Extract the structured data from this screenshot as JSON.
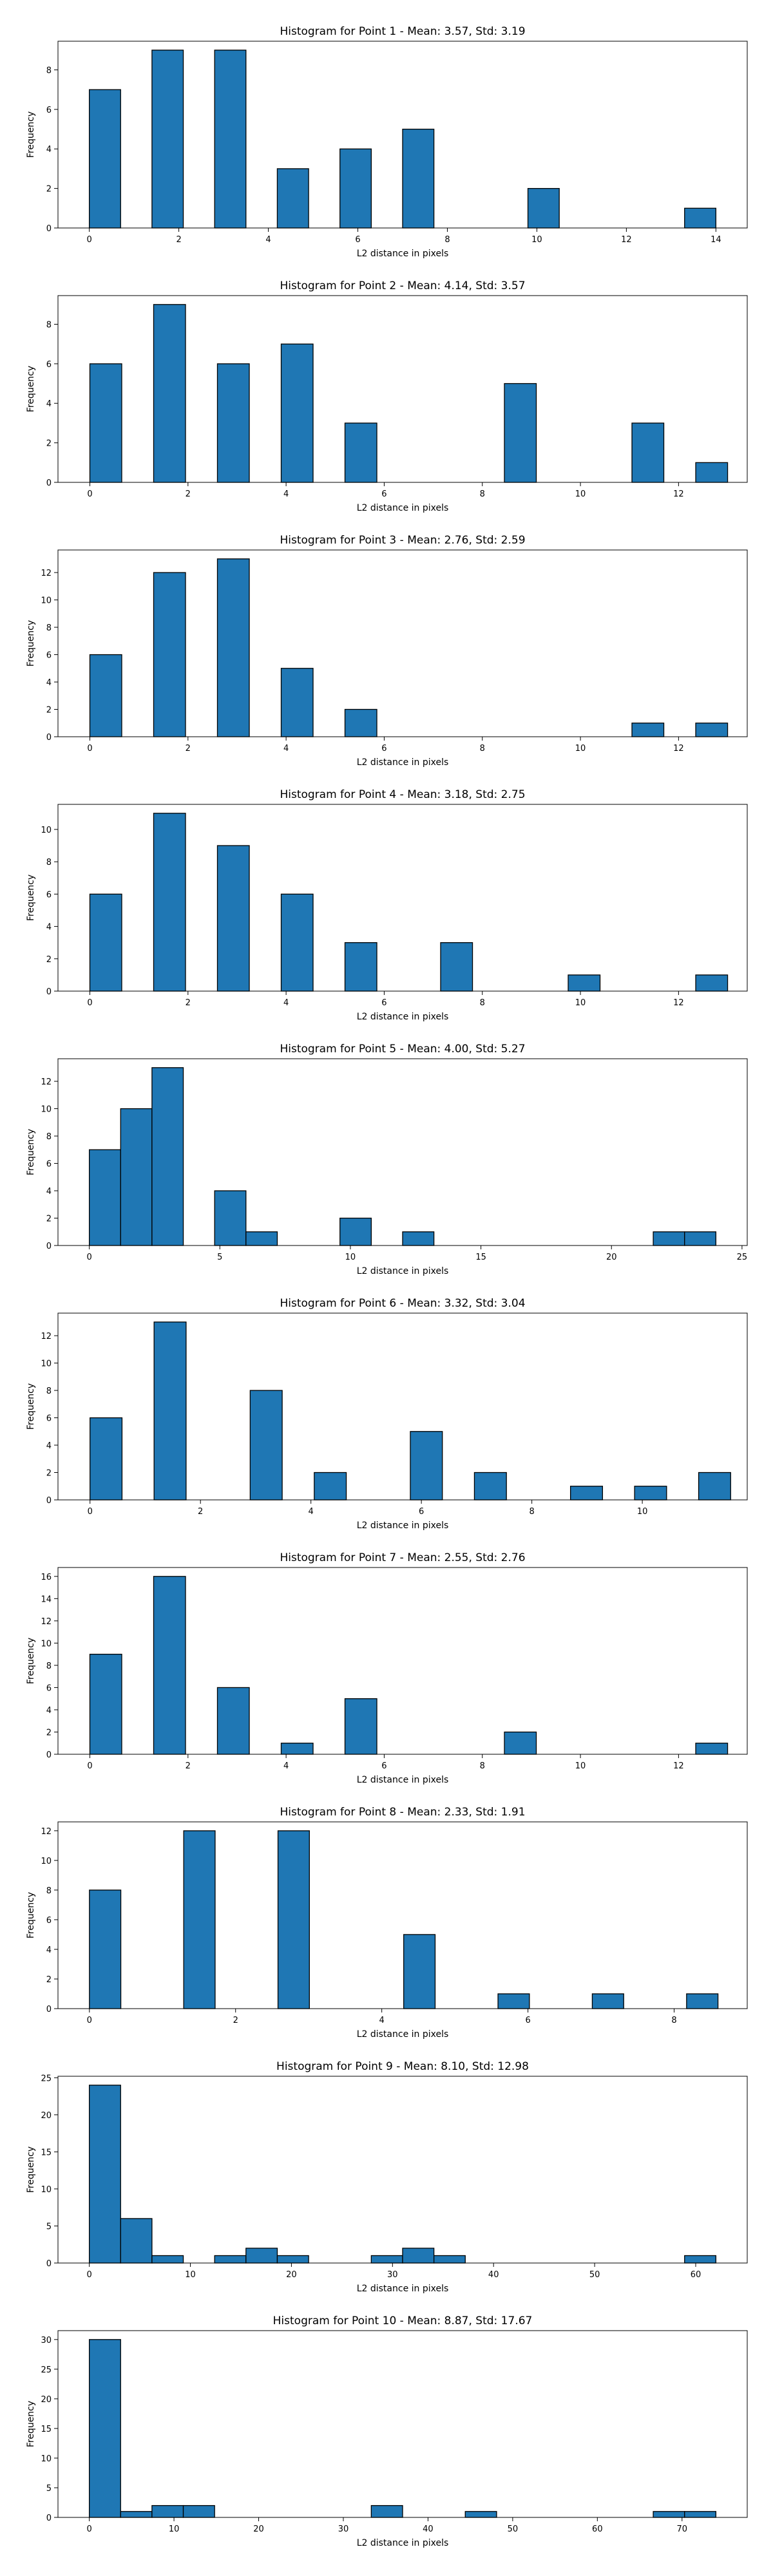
{
  "chart_data": [
    {
      "type": "bar",
      "title": "Histogram for Point 1 - Mean: 3.57, Std: 3.19",
      "xlabel": "L2 distance in pixels",
      "ylabel": "Frequency",
      "xlim": [
        -0.7,
        14.7
      ],
      "ylim": [
        0,
        9.45
      ],
      "xticks": [
        0,
        2,
        4,
        6,
        8,
        10,
        12,
        14
      ],
      "yticks": [
        0,
        2,
        4,
        6,
        8
      ],
      "bin_width": 0.7,
      "bins": [
        {
          "x": 0,
          "count": 7
        },
        {
          "x": 1.4,
          "count": 9
        },
        {
          "x": 2.8,
          "count": 9
        },
        {
          "x": 4.2,
          "count": 3
        },
        {
          "x": 5.6,
          "count": 4
        },
        {
          "x": 7,
          "count": 5
        },
        {
          "x": 9.8,
          "count": 2
        },
        {
          "x": 13.3,
          "count": 1
        }
      ]
    },
    {
      "type": "bar",
      "title": "Histogram for Point 2 - Mean: 4.14, Std: 3.57",
      "xlabel": "L2 distance in pixels",
      "ylabel": "Frequency",
      "xlim": [
        -0.65,
        13.4
      ],
      "ylim": [
        0,
        9.45
      ],
      "xticks": [
        0,
        2,
        4,
        6,
        8,
        10,
        12
      ],
      "yticks": [
        0,
        2,
        4,
        6,
        8
      ],
      "bin_width": 0.65,
      "bins": [
        {
          "x": 0,
          "count": 6
        },
        {
          "x": 1.3,
          "count": 9
        },
        {
          "x": 2.6,
          "count": 6
        },
        {
          "x": 3.9,
          "count": 7
        },
        {
          "x": 5.2,
          "count": 3
        },
        {
          "x": 8.45,
          "count": 5
        },
        {
          "x": 11.05,
          "count": 3
        },
        {
          "x": 12.35,
          "count": 1
        }
      ]
    },
    {
      "type": "bar",
      "title": "Histogram for Point 3 - Mean: 2.76, Std: 2.59",
      "xlabel": "L2 distance in pixels",
      "ylabel": "Frequency",
      "xlim": [
        -0.65,
        13.4
      ],
      "ylim": [
        0,
        13.65
      ],
      "xticks": [
        0,
        2,
        4,
        6,
        8,
        10,
        12
      ],
      "yticks": [
        0,
        2,
        4,
        6,
        8,
        10,
        12
      ],
      "bin_width": 0.65,
      "bins": [
        {
          "x": 0,
          "count": 6
        },
        {
          "x": 1.3,
          "count": 12
        },
        {
          "x": 2.6,
          "count": 13
        },
        {
          "x": 3.9,
          "count": 5
        },
        {
          "x": 5.2,
          "count": 2
        },
        {
          "x": 11.05,
          "count": 1
        },
        {
          "x": 12.35,
          "count": 1
        }
      ]
    },
    {
      "type": "bar",
      "title": "Histogram for Point 4 - Mean: 3.18, Std: 2.75",
      "xlabel": "L2 distance in pixels",
      "ylabel": "Frequency",
      "xlim": [
        -0.65,
        13.4
      ],
      "ylim": [
        0,
        11.55
      ],
      "xticks": [
        0,
        2,
        4,
        6,
        8,
        10,
        12
      ],
      "yticks": [
        0,
        2,
        4,
        6,
        8,
        10
      ],
      "bin_width": 0.65,
      "bins": [
        {
          "x": 0,
          "count": 6
        },
        {
          "x": 1.3,
          "count": 11
        },
        {
          "x": 2.6,
          "count": 9
        },
        {
          "x": 3.9,
          "count": 6
        },
        {
          "x": 5.2,
          "count": 3
        },
        {
          "x": 7.15,
          "count": 3
        },
        {
          "x": 9.75,
          "count": 1
        },
        {
          "x": 12.35,
          "count": 1
        }
      ]
    },
    {
      "type": "bar",
      "title": "Histogram for Point 5 - Mean: 4.00, Std: 5.27",
      "xlabel": "L2 distance in pixels",
      "ylabel": "Frequency",
      "xlim": [
        -1.2,
        25.2
      ],
      "ylim": [
        0,
        13.65
      ],
      "xticks": [
        0,
        5,
        10,
        15,
        20,
        25
      ],
      "yticks": [
        0,
        2,
        4,
        6,
        8,
        10,
        12
      ],
      "bin_width": 1.2,
      "bins": [
        {
          "x": 0,
          "count": 7
        },
        {
          "x": 1.2,
          "count": 10
        },
        {
          "x": 2.4,
          "count": 13
        },
        {
          "x": 4.8,
          "count": 4
        },
        {
          "x": 6,
          "count": 1
        },
        {
          "x": 9.6,
          "count": 2
        },
        {
          "x": 12,
          "count": 1
        },
        {
          "x": 21.6,
          "count": 1
        },
        {
          "x": 22.8,
          "count": 1
        }
      ]
    },
    {
      "type": "bar",
      "title": "Histogram for Point 6 - Mean: 3.32, Std: 3.04",
      "xlabel": "L2 distance in pixels",
      "ylabel": "Frequency",
      "xlim": [
        -0.58,
        11.9
      ],
      "ylim": [
        0,
        13.65
      ],
      "xticks": [
        0,
        2,
        4,
        6,
        8,
        10
      ],
      "yticks": [
        0,
        2,
        4,
        6,
        8,
        10,
        12
      ],
      "bin_width": 0.58,
      "bins": [
        {
          "x": 0,
          "count": 6
        },
        {
          "x": 1.16,
          "count": 13
        },
        {
          "x": 2.9,
          "count": 8
        },
        {
          "x": 4.06,
          "count": 2
        },
        {
          "x": 5.8,
          "count": 5
        },
        {
          "x": 6.96,
          "count": 2
        },
        {
          "x": 8.7,
          "count": 1
        },
        {
          "x": 9.86,
          "count": 1
        },
        {
          "x": 11.02,
          "count": 2
        }
      ]
    },
    {
      "type": "bar",
      "title": "Histogram for Point 7 - Mean: 2.55, Std: 2.76",
      "xlabel": "L2 distance in pixels",
      "ylabel": "Frequency",
      "xlim": [
        -0.65,
        13.4
      ],
      "ylim": [
        0,
        16.8
      ],
      "xticks": [
        0,
        2,
        4,
        6,
        8,
        10,
        12
      ],
      "yticks": [
        0,
        2,
        4,
        6,
        8,
        10,
        12,
        14,
        16
      ],
      "bin_width": 0.65,
      "bins": [
        {
          "x": 0,
          "count": 9
        },
        {
          "x": 1.3,
          "count": 16
        },
        {
          "x": 2.6,
          "count": 6
        },
        {
          "x": 3.9,
          "count": 1
        },
        {
          "x": 5.2,
          "count": 5
        },
        {
          "x": 8.45,
          "count": 2
        },
        {
          "x": 12.35,
          "count": 1
        }
      ]
    },
    {
      "type": "bar",
      "title": "Histogram for Point 8 - Mean: 2.33, Std: 1.91",
      "xlabel": "L2 distance in pixels",
      "ylabel": "Frequency",
      "xlim": [
        -0.43,
        9.0
      ],
      "ylim": [
        0,
        12.6
      ],
      "xticks": [
        0,
        2,
        4,
        6,
        8
      ],
      "yticks": [
        0,
        2,
        4,
        6,
        8,
        10,
        12
      ],
      "bin_width": 0.43,
      "bins": [
        {
          "x": 0,
          "count": 8
        },
        {
          "x": 1.29,
          "count": 12
        },
        {
          "x": 2.58,
          "count": 12
        },
        {
          "x": 4.3,
          "count": 5
        },
        {
          "x": 5.59,
          "count": 1
        },
        {
          "x": 6.88,
          "count": 1
        },
        {
          "x": 8.17,
          "count": 1
        }
      ]
    },
    {
      "type": "bar",
      "title": "Histogram for Point 9 - Mean: 8.10, Std: 12.98",
      "xlabel": "L2 distance in pixels",
      "ylabel": "Frequency",
      "xlim": [
        -3.1,
        65.1
      ],
      "ylim": [
        0,
        25.2
      ],
      "xticks": [
        0,
        10,
        20,
        30,
        40,
        50,
        60
      ],
      "yticks": [
        0,
        5,
        10,
        15,
        20,
        25
      ],
      "bin_width": 3.1,
      "bins": [
        {
          "x": 0,
          "count": 24
        },
        {
          "x": 3.1,
          "count": 6
        },
        {
          "x": 6.2,
          "count": 1
        },
        {
          "x": 12.4,
          "count": 1
        },
        {
          "x": 15.5,
          "count": 2
        },
        {
          "x": 18.6,
          "count": 1
        },
        {
          "x": 27.9,
          "count": 1
        },
        {
          "x": 31,
          "count": 2
        },
        {
          "x": 34.1,
          "count": 1
        },
        {
          "x": 58.9,
          "count": 1
        }
      ]
    },
    {
      "type": "bar",
      "title": "Histogram for Point 10 - Mean: 8.87, Std: 17.67",
      "xlabel": "L2 distance in pixels",
      "ylabel": "Frequency",
      "xlim": [
        -3.7,
        77.7
      ],
      "ylim": [
        0,
        31.5
      ],
      "xticks": [
        0,
        10,
        20,
        30,
        40,
        50,
        60,
        70
      ],
      "yticks": [
        0,
        5,
        10,
        15,
        20,
        25,
        30
      ],
      "bin_width": 3.7,
      "bins": [
        {
          "x": 0,
          "count": 30
        },
        {
          "x": 3.7,
          "count": 1
        },
        {
          "x": 7.4,
          "count": 2
        },
        {
          "x": 11.1,
          "count": 2
        },
        {
          "x": 33.3,
          "count": 2
        },
        {
          "x": 44.4,
          "count": 1
        },
        {
          "x": 66.6,
          "count": 1
        },
        {
          "x": 70.3,
          "count": 1
        }
      ]
    }
  ],
  "colors": {
    "bar_fill": "#1f77b4",
    "bar_edge": "#000000",
    "axis": "#000000",
    "background": "#ffffff"
  }
}
